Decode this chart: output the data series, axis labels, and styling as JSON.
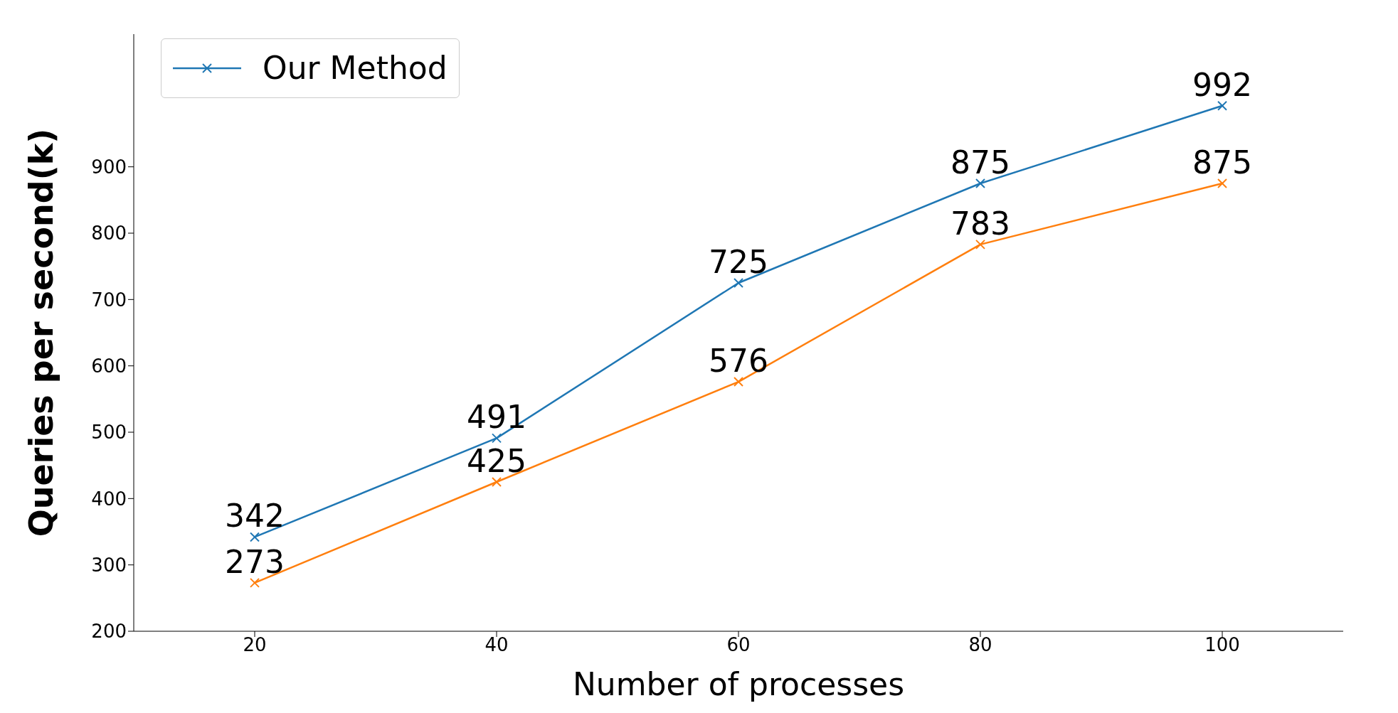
{
  "chart_data": {
    "type": "line",
    "xlabel": "Number of processes",
    "ylabel": "Queries per second(k)",
    "x": [
      20,
      40,
      60,
      80,
      100
    ],
    "series": [
      {
        "name": "Our Method",
        "color": "#1f77b4",
        "values": [
          342,
          491,
          725,
          875,
          992
        ]
      },
      {
        "color": "#ff7f0e",
        "values": [
          273,
          425,
          576,
          783,
          875
        ]
      }
    ],
    "xlim": [
      10,
      110
    ],
    "xticks": [
      20,
      40,
      60,
      80,
      100
    ],
    "ylim": [
      200,
      1100
    ],
    "yticks": [
      200,
      300,
      400,
      500,
      600,
      700,
      800,
      900
    ],
    "data_labels": true,
    "legend": "top left",
    "marker": "cross",
    "grid": false
  }
}
